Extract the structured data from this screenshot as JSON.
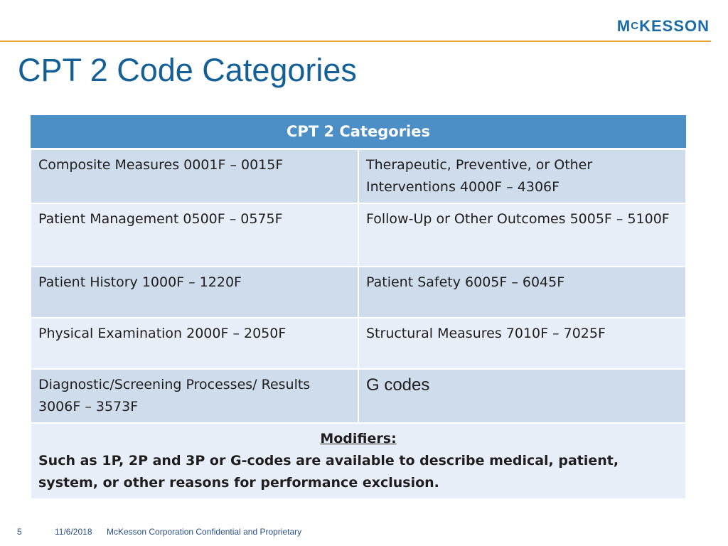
{
  "header": {
    "logo_text_a": "M",
    "logo_text_c": "C",
    "logo_text_b": "KESSON"
  },
  "slide": {
    "title": "CPT 2 Code Categories"
  },
  "table": {
    "heading": "CPT 2 Categories",
    "rows": [
      [
        "Composite Measures 0001F – 0015F",
        "Therapeutic, Preventive, or Other Interventions 4000F – 4306F"
      ],
      [
        "Patient Management 0500F – 0575F",
        "Follow-Up or Other Outcomes 5005F – 5100F"
      ],
      [
        "Patient History 1000F – 1220F",
        "Patient Safety 6005F – 6045F"
      ],
      [
        "Physical Examination 2000F – 2050F",
        "Structural Measures 7010F – 7025F"
      ],
      [
        "Diagnostic/Screening Processes/ Results 3006F – 3573F",
        "G codes"
      ]
    ],
    "modifiers_heading": "Modifiers:",
    "modifiers_text": "Such as 1P, 2P and 3P or G-codes are available to describe medical, patient, system, or other reasons for performance exclusion."
  },
  "footer": {
    "page_number": "5",
    "date": "11/6/2018",
    "confidential": "McKesson Corporation Confidential and Proprietary"
  },
  "colors": {
    "title": "#145f96",
    "accent_rule": "#e7a437",
    "table_header": "#4b8fc6",
    "row_dark": "#cfdcec",
    "row_light": "#e8eef7"
  }
}
